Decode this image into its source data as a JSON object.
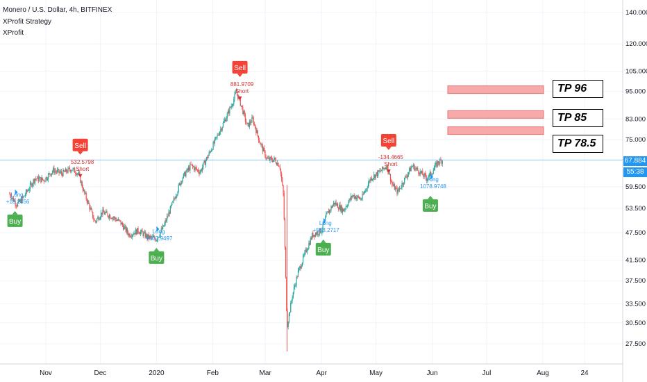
{
  "legend": {
    "symbol": "Monero / U.S. Dollar, 4h, BITFINEX",
    "indicator1": "XProfit Strategy",
    "indicator2": "XProfit"
  },
  "price_tag": {
    "price": "67.884",
    "countdown": "55:38"
  },
  "take_profits": [
    {
      "label": "TP 96",
      "price": 96
    },
    {
      "label": "TP 85",
      "price": 85
    },
    {
      "label": "TP 78.5",
      "price": 78.5
    }
  ],
  "colors": {
    "up": "#26a69a",
    "down": "#ef5350",
    "buy": "#4caf50",
    "sell": "#f44336",
    "current_line": "#2196f3",
    "tp_zone": "#f8a9a9",
    "grid": "#f0f3fa"
  },
  "chart_data": {
    "type": "candlestick",
    "title": "Monero / U.S. Dollar, 4h, BITFINEX",
    "y_scale": "log",
    "ylim": [
      25,
      150
    ],
    "y_ticks": [
      "140.000",
      "120.000",
      "105.000",
      "95.000",
      "83.000",
      "75.000",
      "67.884",
      "59.500",
      "53.500",
      "47.500",
      "41.500",
      "37.500",
      "33.500",
      "30.500",
      "27.500"
    ],
    "x_ticks": [
      "Nov",
      "Dec",
      "2020",
      "Feb",
      "Mar",
      "Apr",
      "May",
      "Jun",
      "Jul",
      "Aug",
      "24"
    ],
    "x_tick_dates": [
      "2019-11-01",
      "2019-12-01",
      "2020-01-01",
      "2020-02-01",
      "2020-03-01",
      "2020-04-01",
      "2020-05-01",
      "2020-06-01",
      "2020-07-01",
      "2020-08-01",
      "2020-08-24"
    ],
    "price_path": [
      [
        "2019-10-12",
        57.5
      ],
      [
        "2019-10-16",
        54.5
      ],
      [
        "2019-10-19",
        56
      ],
      [
        "2019-10-22",
        58.5
      ],
      [
        "2019-10-26",
        62
      ],
      [
        "2019-10-31",
        61.5
      ],
      [
        "2019-11-05",
        64.5
      ],
      [
        "2019-11-10",
        63.5
      ],
      [
        "2019-11-15",
        65
      ],
      [
        "2019-11-19",
        63.5
      ],
      [
        "2019-11-22",
        58
      ],
      [
        "2019-11-25",
        54
      ],
      [
        "2019-11-28",
        50
      ],
      [
        "2019-12-02",
        52.5
      ],
      [
        "2019-12-07",
        51.5
      ],
      [
        "2019-12-12",
        50
      ],
      [
        "2019-12-17",
        47
      ],
      [
        "2019-12-22",
        48
      ],
      [
        "2019-12-27",
        46.5
      ],
      [
        "2020-01-01",
        46
      ],
      [
        "2020-01-05",
        49
      ],
      [
        "2020-01-10",
        55
      ],
      [
        "2020-01-15",
        62
      ],
      [
        "2020-01-20",
        66
      ],
      [
        "2020-01-25",
        64
      ],
      [
        "2020-01-30",
        70
      ],
      [
        "2020-02-04",
        77
      ],
      [
        "2020-02-08",
        83
      ],
      [
        "2020-02-12",
        90
      ],
      [
        "2020-02-14",
        95
      ],
      [
        "2020-02-17",
        88
      ],
      [
        "2020-02-20",
        80
      ],
      [
        "2020-02-23",
        83
      ],
      [
        "2020-02-27",
        74
      ],
      [
        "2020-03-02",
        68
      ],
      [
        "2020-03-06",
        68
      ],
      [
        "2020-03-09",
        66
      ],
      [
        "2020-03-11",
        57
      ],
      [
        "2020-03-13",
        30
      ],
      [
        "2020-03-16",
        35
      ],
      [
        "2020-03-19",
        39
      ],
      [
        "2020-03-23",
        43
      ],
      [
        "2020-03-27",
        47
      ],
      [
        "2020-04-01",
        48
      ],
      [
        "2020-04-04",
        52
      ],
      [
        "2020-04-08",
        55
      ],
      [
        "2020-04-13",
        53
      ],
      [
        "2020-04-18",
        57
      ],
      [
        "2020-04-23",
        56
      ],
      [
        "2020-04-28",
        62
      ],
      [
        "2020-05-03",
        64
      ],
      [
        "2020-05-07",
        66
      ],
      [
        "2020-05-10",
        60
      ],
      [
        "2020-05-13",
        58
      ],
      [
        "2020-05-17",
        62
      ],
      [
        "2020-05-21",
        66
      ],
      [
        "2020-05-25",
        64
      ],
      [
        "2020-05-29",
        62
      ],
      [
        "2020-06-01",
        64
      ],
      [
        "2020-06-04",
        67
      ],
      [
        "2020-06-07",
        67.9
      ]
    ],
    "signals": [
      {
        "type": "Buy",
        "date": "2019-10-15",
        "price": 57.5,
        "label": "Buy",
        "note1": "Long",
        "note2": "+18.2356"
      },
      {
        "type": "Sell",
        "date": "2019-11-20",
        "price": 63.5,
        "label": "Sell",
        "note1": "532.5798",
        "note2": "Short"
      },
      {
        "type": "Buy",
        "date": "2020-01-01",
        "price": 48,
        "label": "Buy",
        "note1": "Long",
        "note2": "+607.9497"
      },
      {
        "type": "Sell",
        "date": "2020-02-16",
        "price": 93,
        "label": "Sell",
        "note1": "881.9709",
        "note2": "Short"
      },
      {
        "type": "Buy",
        "date": "2020-04-02",
        "price": 50,
        "label": "Buy",
        "note1": "Long",
        "note2": "+553.2717"
      },
      {
        "type": "Sell",
        "date": "2020-05-08",
        "price": 65,
        "label": "Sell",
        "note1": "-134.4665",
        "note2": "Short"
      },
      {
        "type": "Buy",
        "date": "2020-05-31",
        "price": 62,
        "label": "Buy",
        "note1": "Long",
        "note2": "1078.9748"
      }
    ]
  }
}
